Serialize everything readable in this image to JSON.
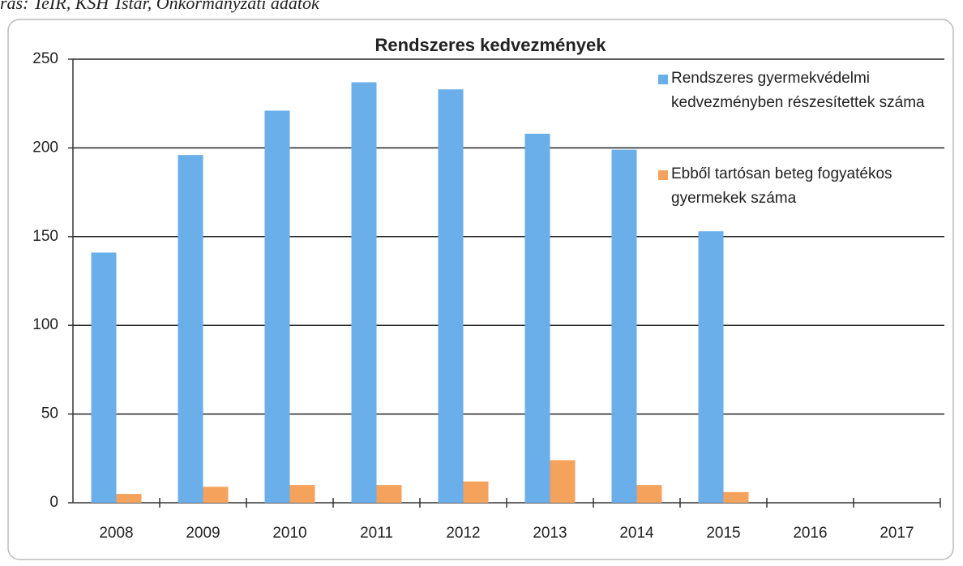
{
  "chart_data": {
    "type": "bar",
    "source": "rás: TeIR, KSH Tstar, Önkormányzati adatok",
    "title": "Rendszeres kedvezmények",
    "categories": [
      "2008",
      "2009",
      "2010",
      "2011",
      "2012",
      "2013",
      "2014",
      "2015",
      "2016",
      "2017"
    ],
    "series": [
      {
        "name": "Rendszeres gyermekvédelmi kedvezményben részesítettek száma",
        "color": "#6aaeea",
        "values": [
          141,
          196,
          221,
          237,
          233,
          208,
          199,
          153,
          null,
          null
        ]
      },
      {
        "name": "Ebből tartósan beteg fogyatékos gyermekek száma",
        "color": "#f5a25c",
        "values": [
          5,
          9,
          10,
          10,
          12,
          24,
          10,
          6,
          null,
          null
        ]
      }
    ],
    "ylim": [
      0,
      250
    ],
    "yticks": [
      0,
      50,
      100,
      150,
      200,
      250
    ],
    "grid": true,
    "legend": "top-right"
  }
}
